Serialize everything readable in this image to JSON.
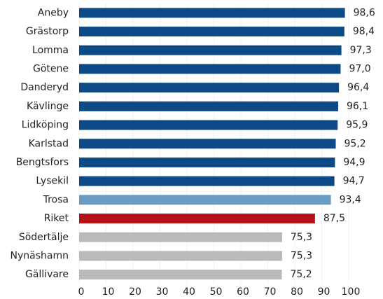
{
  "chart_data": {
    "type": "barh",
    "categories": [
      "Aneby",
      "Grästorp",
      "Lomma",
      "Götene",
      "Danderyd",
      "Kävlinge",
      "Lidköping",
      "Karlstad",
      "Bengtsfors",
      "Lysekil",
      "Trosa",
      "Riket",
      "Södertälje",
      "Nynäshamn",
      "Gällivare"
    ],
    "values": [
      98.6,
      98.4,
      97.3,
      97.0,
      96.4,
      96.1,
      95.9,
      95.2,
      94.9,
      94.7,
      93.4,
      87.5,
      75.3,
      75.3,
      75.2
    ],
    "value_labels": [
      "98,6",
      "98,4",
      "97,3",
      "97,0",
      "96,4",
      "96,1",
      "95,9",
      "95,2",
      "94,9",
      "94,7",
      "93,4",
      "87,5",
      "75,3",
      "75,3",
      "75,2"
    ],
    "colors": [
      "#0b4a86",
      "#0b4a86",
      "#0b4a86",
      "#0b4a86",
      "#0b4a86",
      "#0b4a86",
      "#0b4a86",
      "#0b4a86",
      "#0b4a86",
      "#0b4a86",
      "#6a9bc3",
      "#b31217",
      "#b8babc",
      "#b8babc",
      "#b8babc"
    ],
    "xlim": [
      0,
      100
    ],
    "xticks": [
      0,
      10,
      20,
      30,
      40,
      50,
      60,
      70,
      80,
      90,
      100
    ],
    "grid": true
  }
}
